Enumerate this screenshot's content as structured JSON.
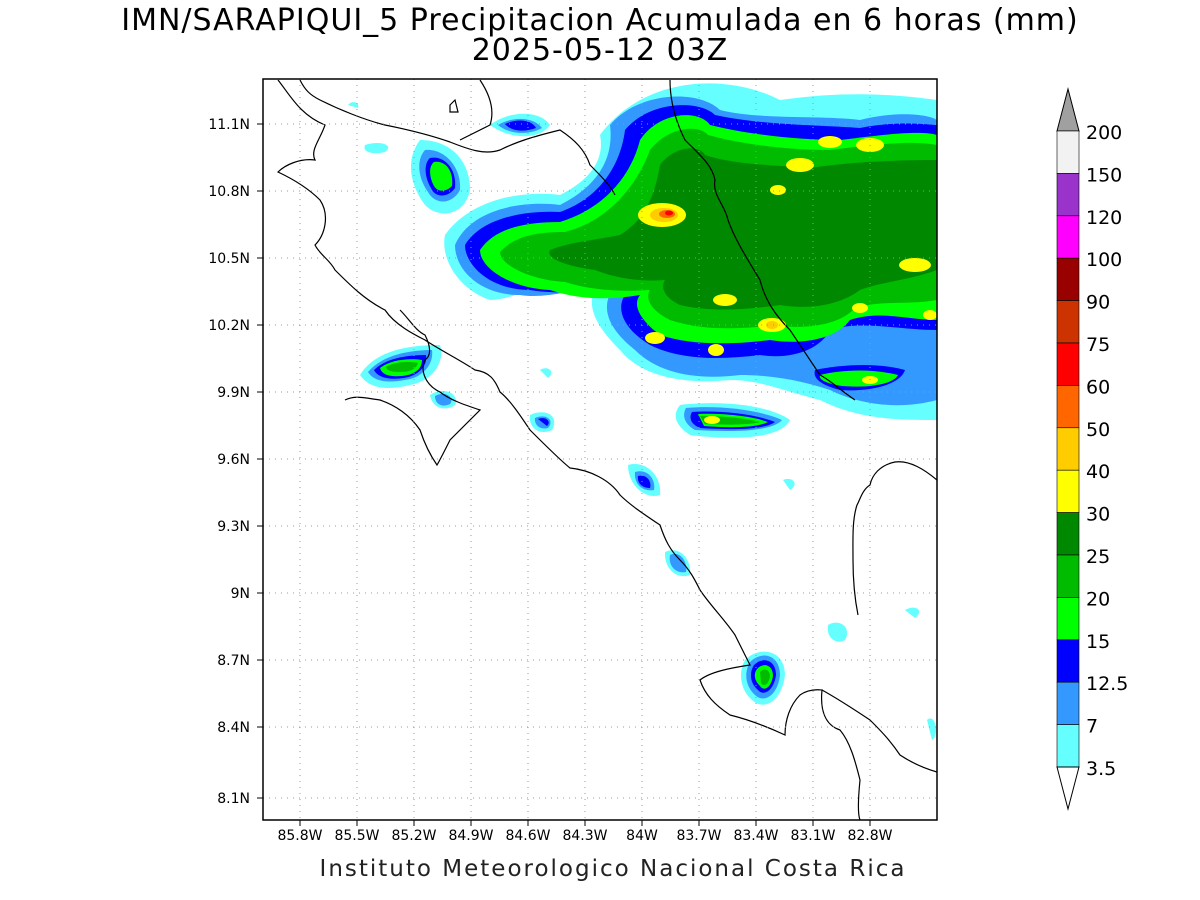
{
  "title": {
    "line1": "IMN/SARAPIQUI_5 Precipitacion Acumulada en 6 horas (mm)",
    "line2": "2025-05-12 03Z"
  },
  "credit": "Instituto Meteorologico Nacional Costa Rica",
  "map": {
    "lat_range": [
      8.03,
      11.35
    ],
    "lon_range": [
      -85.97,
      -82.97
    ],
    "lat_ticks": [
      "11.1N",
      "10.8N",
      "10.5N",
      "10.2N",
      "9.9N",
      "9.6N",
      "9.3N",
      "9N",
      "8.7N",
      "8.4N",
      "8.1N"
    ],
    "lon_ticks": [
      "85.8W",
      "85.5W",
      "85.2W",
      "84.9W",
      "84.6W",
      "84.3W",
      "84W",
      "83.7W",
      "83.4W",
      "83.1W",
      "82.8W"
    ],
    "grid": true
  },
  "colorbar": {
    "labels": [
      "200",
      "150",
      "120",
      "100",
      "90",
      "75",
      "60",
      "50",
      "40",
      "30",
      "25",
      "20",
      "15",
      "12.5",
      "7",
      "3.5"
    ],
    "colors": {
      "200": "#a0a0a0",
      "150": "#f2f2f2",
      "120": "#9933cc",
      "100": "#ff00ff",
      "90": "#990000",
      "75": "#cc3300",
      "60": "#ff0000",
      "50": "#ff6600",
      "40": "#ffcc00",
      "30": "#ffff00",
      "25": "#008800",
      "20": "#00bb00",
      "15": "#00ff00",
      "12.5": "#0000ff",
      "7": "#3399ff",
      "3.5": "#66ffff"
    }
  }
}
